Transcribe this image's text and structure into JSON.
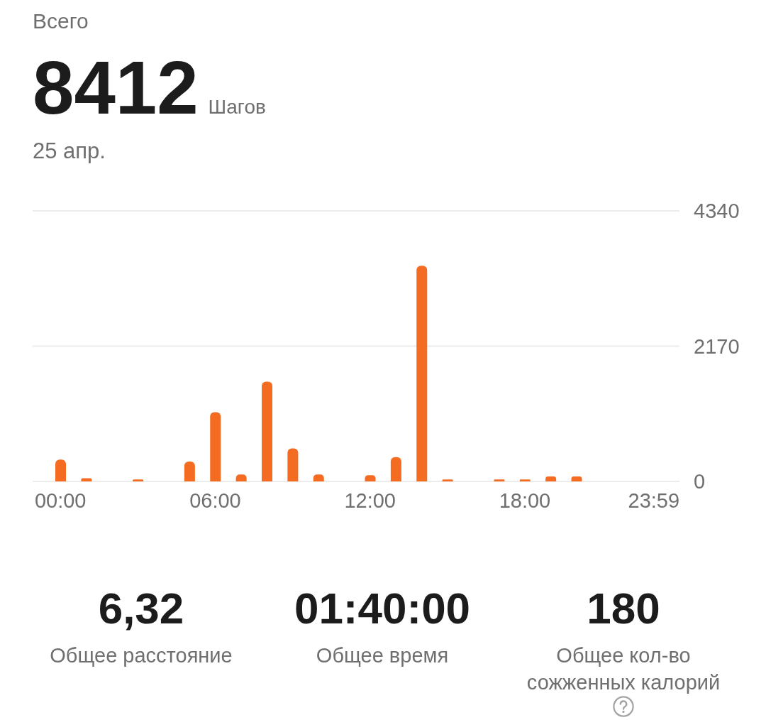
{
  "chart_data": {
    "type": "bar",
    "title": "Всего",
    "categories": [
      "00:00",
      null,
      null,
      null,
      null,
      null,
      "06:00",
      null,
      null,
      null,
      null,
      null,
      "12:00",
      null,
      null,
      null,
      null,
      null,
      "18:00",
      null,
      null,
      null,
      null,
      "23:59"
    ],
    "values": [
      350,
      50,
      0,
      30,
      0,
      320,
      1110,
      110,
      1600,
      530,
      110,
      0,
      100,
      390,
      3460,
      30,
      0,
      30,
      30,
      80,
      80,
      0,
      0,
      0
    ],
    "color": "#f36c21",
    "ylim": [
      0,
      4340
    ],
    "yticks": [
      0,
      2170,
      4340
    ],
    "grid": "y",
    "annotations": [
      "8412",
      "Шагов",
      "25 апр.",
      "6,32",
      "Общее расстояние",
      "01:40:00",
      "Общее время",
      "180",
      "Общее кол-во сожженных калорий"
    ]
  }
}
